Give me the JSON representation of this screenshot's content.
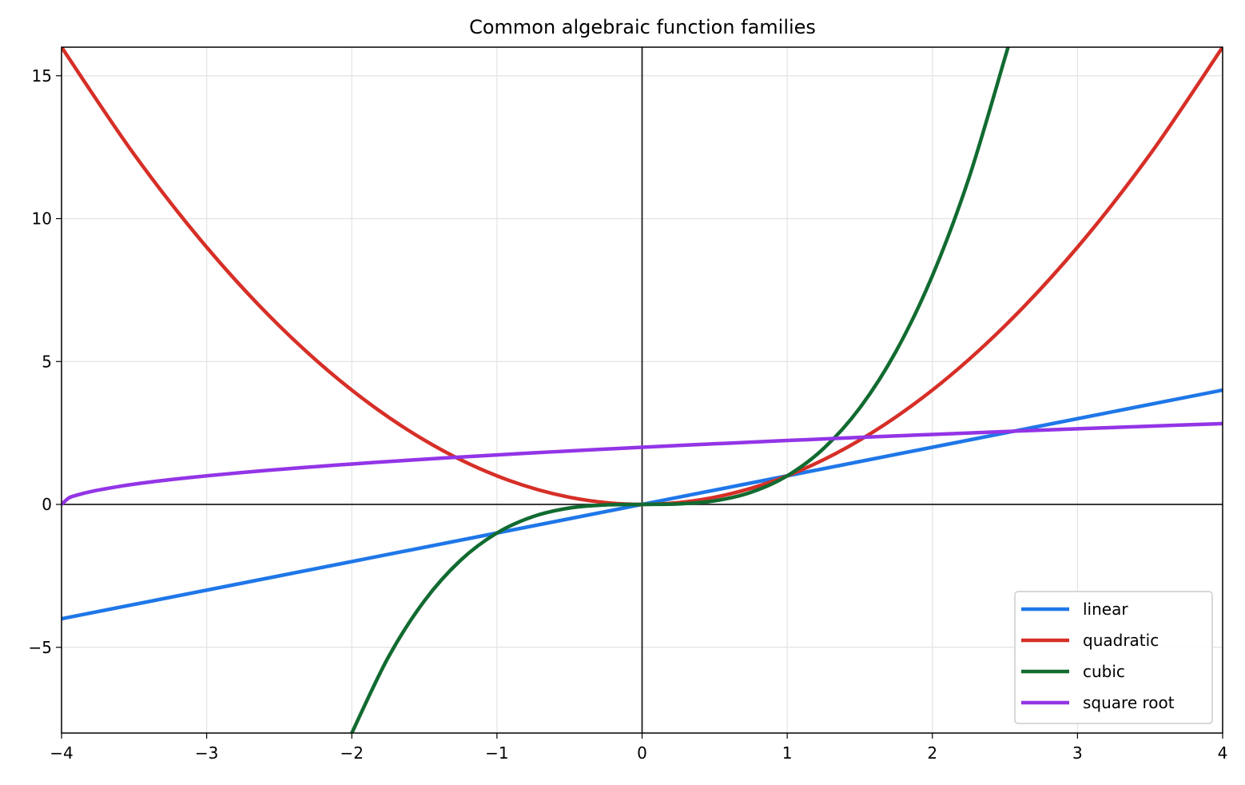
{
  "chart_data": {
    "type": "line",
    "title": "Common algebraic function families",
    "xlabel": "",
    "ylabel": "",
    "xlim": [
      -4,
      4
    ],
    "ylim": [
      -8,
      16
    ],
    "grid": true,
    "legend_position": "bottom-right",
    "x_ticks": [
      {
        "value": -4,
        "label": "−4"
      },
      {
        "value": -3,
        "label": "−3"
      },
      {
        "value": -2,
        "label": "−2"
      },
      {
        "value": -1,
        "label": "−1"
      },
      {
        "value": 0,
        "label": "0"
      },
      {
        "value": 1,
        "label": "1"
      },
      {
        "value": 2,
        "label": "2"
      },
      {
        "value": 3,
        "label": "3"
      },
      {
        "value": 4,
        "label": "4"
      }
    ],
    "y_ticks": [
      {
        "value": -5,
        "label": "−5"
      },
      {
        "value": 0,
        "label": "0"
      },
      {
        "value": 5,
        "label": "5"
      },
      {
        "value": 10,
        "label": "10"
      },
      {
        "value": 15,
        "label": "15"
      }
    ],
    "series": [
      {
        "name": "linear",
        "color": "#1f77e8",
        "x": [
          -4,
          -3,
          -2,
          -1,
          0,
          1,
          2,
          3,
          4
        ],
        "y": [
          -4,
          -3,
          -2,
          -1,
          0,
          1,
          2,
          3,
          4
        ]
      },
      {
        "name": "quadratic",
        "color": "#d62f27",
        "x": [
          -4,
          -3.5,
          -3,
          -2.5,
          -2,
          -1.5,
          -1,
          -0.5,
          0,
          0.5,
          1,
          1.5,
          2,
          2.5,
          3,
          3.5,
          4
        ],
        "y": [
          16,
          12.25,
          9,
          6.25,
          4,
          2.25,
          1,
          0.25,
          0,
          0.25,
          1,
          2.25,
          4,
          6.25,
          9,
          12.25,
          16
        ]
      },
      {
        "name": "cubic",
        "color": "#116b30",
        "x": [
          -2,
          -1.75,
          -1.5,
          -1.25,
          -1,
          -0.75,
          -0.5,
          -0.25,
          0,
          0.25,
          0.5,
          0.75,
          1,
          1.25,
          1.5,
          1.75,
          2,
          2.25,
          2.5,
          2.52
        ],
        "y": [
          -8,
          -5.36,
          -3.375,
          -1.953,
          -1,
          -0.422,
          -0.125,
          -0.016,
          0,
          0.016,
          0.125,
          0.422,
          1,
          1.953,
          3.375,
          5.36,
          8,
          11.39,
          15.625,
          16
        ]
      },
      {
        "name": "square root",
        "color": "#9334e6",
        "x": [
          -4,
          -3.95,
          -3.9,
          -3.8,
          -3.6,
          -3.4,
          -3.2,
          -3,
          -2.75,
          -2.5,
          -2.25,
          -2,
          -1.75,
          -1.5,
          -1.25,
          -1,
          -0.75,
          -0.5,
          -0.25,
          0,
          0.5,
          1,
          1.5,
          2,
          2.5,
          3,
          3.5,
          4
        ],
        "y": [
          0,
          0.224,
          0.316,
          0.447,
          0.632,
          0.775,
          0.894,
          1,
          1.118,
          1.225,
          1.323,
          1.414,
          1.5,
          1.581,
          1.658,
          1.732,
          1.803,
          1.871,
          1.936,
          2,
          2.121,
          2.236,
          2.345,
          2.449,
          2.55,
          2.646,
          2.739,
          2.828
        ]
      }
    ]
  }
}
